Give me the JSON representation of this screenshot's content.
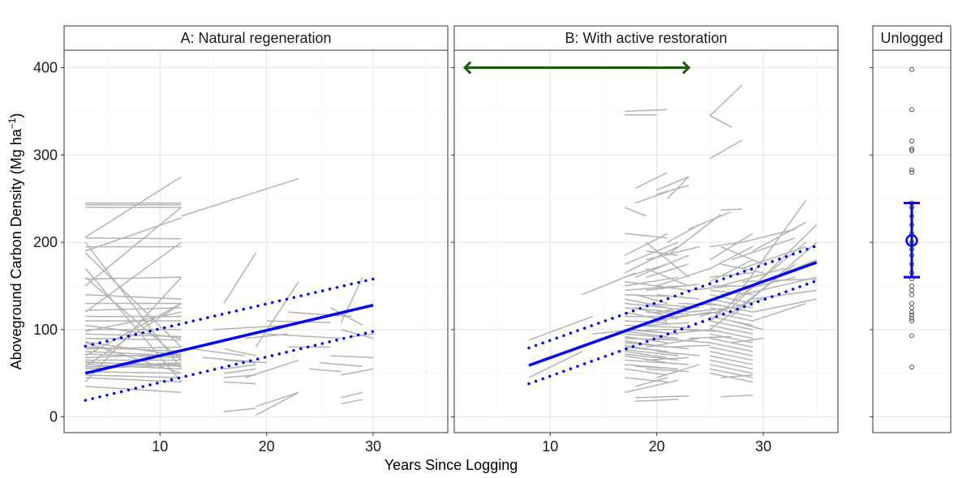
{
  "figure": {
    "xlabel": "Years Since Logging",
    "ylabel_main": "Aboveground Carbon Density (Mg ha",
    "ylabel_sup": "−1",
    "ylabel_close": ")"
  },
  "chart_data": [
    {
      "type": "line",
      "panel": "A",
      "title": "A: Natural regeneration",
      "xlim": [
        1,
        37
      ],
      "ylim": [
        -18,
        420
      ],
      "xticks": [
        10,
        20,
        30
      ],
      "yticks": [
        0,
        100,
        200,
        300,
        400
      ],
      "grid": true,
      "fit": {
        "name": "fit",
        "color": "#0000ff",
        "x": [
          3,
          30
        ],
        "y": [
          50,
          128
        ]
      },
      "ci_lower": {
        "color": "#0000ff",
        "x": [
          3,
          30
        ],
        "y": [
          19,
          98
        ]
      },
      "ci_upper": {
        "color": "#0000ff",
        "x": [
          3,
          30
        ],
        "y": [
          81,
          158
        ]
      },
      "plot_segments_color": "#b3b3b3",
      "plot_segments": [
        [
          3,
          245,
          12,
          245
        ],
        [
          3,
          243,
          12,
          243
        ],
        [
          3,
          240,
          12,
          240
        ],
        [
          3,
          206,
          12,
          275
        ],
        [
          3,
          205,
          12,
          204
        ],
        [
          3,
          195,
          12,
          195
        ],
        [
          3,
          190,
          12,
          228
        ],
        [
          3,
          150,
          12,
          240
        ],
        [
          3,
          158,
          12,
          160
        ],
        [
          3,
          140,
          12,
          135
        ],
        [
          3,
          130,
          12,
          130
        ],
        [
          3,
          122,
          12,
          125
        ],
        [
          3,
          115,
          12,
          115
        ],
        [
          3,
          110,
          12,
          110
        ],
        [
          3,
          100,
          12,
          100
        ],
        [
          3,
          95,
          12,
          92
        ],
        [
          3,
          90,
          12,
          88
        ],
        [
          3,
          85,
          12,
          50
        ],
        [
          3,
          80,
          12,
          75
        ],
        [
          3,
          75,
          12,
          70
        ],
        [
          3,
          70,
          12,
          130
        ],
        [
          3,
          68,
          12,
          72
        ],
        [
          3,
          65,
          12,
          65
        ],
        [
          3,
          62,
          12,
          60
        ],
        [
          3,
          60,
          12,
          55
        ],
        [
          3,
          58,
          12,
          130
        ],
        [
          3,
          55,
          12,
          60
        ],
        [
          3,
          52,
          12,
          50
        ],
        [
          3,
          48,
          12,
          45
        ],
        [
          3,
          45,
          12,
          40
        ],
        [
          3,
          40,
          12,
          160
        ],
        [
          3,
          35,
          12,
          28
        ],
        [
          3,
          200,
          12,
          55
        ],
        [
          3,
          188,
          12,
          80
        ],
        [
          3,
          170,
          12,
          40
        ],
        [
          3,
          160,
          12,
          65
        ],
        [
          3,
          120,
          12,
          200
        ],
        [
          3,
          105,
          12,
          90
        ],
        [
          3,
          98,
          12,
          120
        ],
        [
          3,
          86,
          12,
          70
        ],
        [
          3,
          78,
          12,
          80
        ],
        [
          3,
          72,
          12,
          68
        ],
        [
          3,
          63,
          12,
          58
        ],
        [
          3,
          57,
          12,
          62
        ],
        [
          12,
          230,
          23,
          273
        ],
        [
          16,
          130,
          19,
          188
        ],
        [
          16,
          78,
          19,
          70
        ],
        [
          16,
          65,
          19,
          62
        ],
        [
          16,
          55,
          19,
          60
        ],
        [
          16,
          50,
          19,
          55
        ],
        [
          16,
          45,
          19,
          48
        ],
        [
          16,
          6,
          19,
          10
        ],
        [
          16,
          40,
          19,
          38
        ],
        [
          19,
          80,
          23,
          155
        ],
        [
          18,
          45,
          23,
          65
        ],
        [
          19,
          2,
          23,
          28
        ],
        [
          19,
          12,
          23,
          28
        ],
        [
          20,
          95,
          27,
          90
        ],
        [
          22,
          120,
          28,
          115
        ],
        [
          25,
          62,
          29,
          58
        ],
        [
          24,
          55,
          27,
          52
        ],
        [
          26,
          125,
          29,
          105
        ],
        [
          27,
          22,
          29,
          28
        ],
        [
          27,
          15,
          29,
          20
        ],
        [
          26,
          70,
          30,
          68
        ],
        [
          27,
          100,
          30,
          90
        ],
        [
          27,
          48,
          30,
          55
        ],
        [
          22,
          80,
          26,
          80
        ],
        [
          28,
          92,
          30,
          95
        ],
        [
          13,
          78,
          18,
          70
        ],
        [
          14,
          68,
          20,
          62
        ],
        [
          18,
          90,
          22,
          95
        ],
        [
          27,
          108,
          29,
          160
        ],
        [
          20,
          110,
          26,
          108
        ],
        [
          15,
          100,
          22,
          105
        ]
      ]
    },
    {
      "type": "line",
      "panel": "B",
      "title": "B: With active restoration",
      "xlim": [
        1,
        37
      ],
      "ylim": [
        -18,
        420
      ],
      "xticks": [
        10,
        20,
        30
      ],
      "yticks": [
        0,
        100,
        200,
        300,
        400
      ],
      "grid": true,
      "fit": {
        "name": "fit",
        "color": "#0000ff",
        "x": [
          8,
          35
        ],
        "y": [
          59,
          177
        ]
      },
      "ci_lower": {
        "color": "#0000ff",
        "x": [
          8,
          35
        ],
        "y": [
          38,
          156
        ]
      },
      "ci_upper": {
        "color": "#0000ff",
        "x": [
          8,
          35
        ],
        "y": [
          79,
          196
        ]
      },
      "arrow": {
        "color": "#1a5c0a",
        "x": [
          2,
          23
        ],
        "y": 400
      },
      "plot_segments_color": "#b3b3b3",
      "plot_segments": [
        [
          8,
          88,
          14,
          115
        ],
        [
          8,
          45,
          13,
          75
        ],
        [
          13,
          140,
          18,
          165
        ],
        [
          14,
          95,
          18,
          100
        ],
        [
          17,
          350,
          21,
          352
        ],
        [
          17,
          346,
          20,
          346
        ],
        [
          17,
          240,
          19,
          230
        ],
        [
          18,
          262,
          21,
          280
        ],
        [
          18,
          245,
          21,
          258
        ],
        [
          17,
          210,
          21,
          205
        ],
        [
          17,
          185,
          21,
          210
        ],
        [
          17,
          175,
          22,
          200
        ],
        [
          17,
          165,
          22,
          195
        ],
        [
          17,
          160,
          21,
          175
        ],
        [
          17,
          155,
          23,
          145
        ],
        [
          17,
          150,
          22,
          160
        ],
        [
          17,
          145,
          22,
          150
        ],
        [
          17,
          140,
          21,
          138
        ],
        [
          17,
          135,
          23,
          120
        ],
        [
          17,
          130,
          21,
          125
        ],
        [
          17,
          125,
          22,
          120
        ],
        [
          17,
          120,
          21,
          110
        ],
        [
          17,
          115,
          22,
          115
        ],
        [
          17,
          110,
          21,
          108
        ],
        [
          17,
          105,
          23,
          102
        ],
        [
          17,
          100,
          22,
          95
        ],
        [
          17,
          98,
          21,
          92
        ],
        [
          17,
          95,
          22,
          90
        ],
        [
          17,
          92,
          21,
          85
        ],
        [
          17,
          90,
          22,
          88
        ],
        [
          17,
          87,
          21,
          80
        ],
        [
          17,
          85,
          23,
          78
        ],
        [
          17,
          82,
          22,
          72
        ],
        [
          17,
          80,
          21,
          75
        ],
        [
          17,
          77,
          22,
          70
        ],
        [
          17,
          75,
          21,
          68
        ],
        [
          17,
          72,
          22,
          65
        ],
        [
          17,
          70,
          21,
          62
        ],
        [
          17,
          65,
          23,
          60
        ],
        [
          17,
          60,
          22,
          55
        ],
        [
          17,
          55,
          21,
          48
        ],
        [
          17,
          45,
          21,
          40
        ],
        [
          17,
          28,
          22,
          42
        ],
        [
          18,
          22,
          23,
          24
        ],
        [
          18,
          18,
          22,
          20
        ],
        [
          19,
          160,
          23,
          175
        ],
        [
          19,
          200,
          23,
          160
        ],
        [
          19,
          190,
          22,
          185
        ],
        [
          19,
          180,
          24,
          195
        ],
        [
          20,
          150,
          25,
          170
        ],
        [
          20,
          140,
          24,
          135
        ],
        [
          19,
          170,
          23,
          150
        ],
        [
          20,
          255,
          23,
          265
        ],
        [
          20,
          260,
          23,
          275
        ],
        [
          21,
          250,
          23,
          275
        ],
        [
          18,
          160,
          23,
          185
        ],
        [
          20,
          120,
          25,
          130
        ],
        [
          20,
          110,
          25,
          120
        ],
        [
          19,
          130,
          24,
          125
        ],
        [
          19,
          100,
          24,
          100
        ],
        [
          19,
          80,
          24,
          90
        ],
        [
          21,
          200,
          24,
          220
        ],
        [
          21,
          185,
          26,
          232
        ],
        [
          23,
          215,
          27,
          235
        ],
        [
          25,
          345,
          27,
          332
        ],
        [
          25,
          345,
          28,
          380
        ],
        [
          25,
          296,
          28,
          317
        ],
        [
          25,
          195,
          28,
          200
        ],
        [
          25,
          180,
          29,
          210
        ],
        [
          25,
          170,
          29,
          195
        ],
        [
          25,
          160,
          29,
          165
        ],
        [
          25,
          155,
          29,
          180
        ],
        [
          25,
          150,
          29,
          150
        ],
        [
          25,
          145,
          29,
          140
        ],
        [
          25,
          140,
          29,
          130
        ],
        [
          25,
          135,
          29,
          125
        ],
        [
          25,
          130,
          29,
          120
        ],
        [
          25,
          125,
          29,
          115
        ],
        [
          25,
          120,
          29,
          110
        ],
        [
          25,
          115,
          29,
          105
        ],
        [
          25,
          110,
          29,
          100
        ],
        [
          25,
          105,
          29,
          95
        ],
        [
          25,
          100,
          29,
          90
        ],
        [
          25,
          95,
          29,
          85
        ],
        [
          25,
          90,
          29,
          80
        ],
        [
          25,
          85,
          29,
          75
        ],
        [
          25,
          80,
          29,
          70
        ],
        [
          25,
          75,
          29,
          65
        ],
        [
          25,
          70,
          29,
          60
        ],
        [
          25,
          65,
          29,
          55
        ],
        [
          25,
          60,
          29,
          50
        ],
        [
          25,
          55,
          29,
          45
        ],
        [
          25,
          50,
          29,
          40
        ],
        [
          26,
          237,
          28,
          238
        ],
        [
          26,
          45,
          29,
          48
        ],
        [
          26,
          23,
          29,
          25
        ],
        [
          26,
          195,
          30,
          175
        ],
        [
          26,
          175,
          30,
          165
        ],
        [
          27,
          110,
          30,
          100
        ],
        [
          27,
          85,
          30,
          90
        ],
        [
          25,
          110,
          34,
          200
        ],
        [
          25,
          100,
          33,
          175
        ],
        [
          27,
          130,
          34,
          248
        ],
        [
          27,
          125,
          35,
          220
        ],
        [
          27,
          115,
          35,
          200
        ],
        [
          28,
          155,
          35,
          158
        ],
        [
          28,
          140,
          35,
          160
        ],
        [
          29,
          150,
          35,
          180
        ],
        [
          29,
          135,
          35,
          145
        ],
        [
          29,
          120,
          35,
          135
        ],
        [
          29,
          110,
          34,
          130
        ],
        [
          26,
          150,
          32,
          170
        ],
        [
          26,
          140,
          33,
          160
        ],
        [
          27,
          180,
          33,
          205
        ],
        [
          28,
          170,
          34,
          195
        ],
        [
          28,
          200,
          33,
          215
        ],
        [
          29,
          190,
          34,
          223
        ],
        [
          24,
          115,
          30,
          135
        ],
        [
          19,
          65,
          23,
          68
        ],
        [
          19,
          55,
          23,
          52
        ],
        [
          20,
          90,
          25,
          85
        ],
        [
          20,
          75,
          24,
          70
        ],
        [
          18,
          140,
          21,
          130
        ],
        [
          18,
          125,
          22,
          112
        ],
        [
          18,
          100,
          22,
          95
        ],
        [
          18,
          85,
          21,
          80
        ],
        [
          19,
          145,
          24,
          152
        ],
        [
          19,
          120,
          23,
          118
        ],
        [
          19,
          105,
          23,
          108
        ],
        [
          21,
          95,
          25,
          100
        ],
        [
          21,
          80,
          25,
          82
        ],
        [
          20,
          45,
          24,
          60
        ],
        [
          18,
          58,
          22,
          55
        ],
        [
          18,
          35,
          21,
          45
        ],
        [
          22,
          130,
          26,
          128
        ],
        [
          22,
          115,
          26,
          120
        ],
        [
          22,
          100,
          26,
          98
        ],
        [
          23,
          145,
          27,
          150
        ],
        [
          23,
          120,
          27,
          125
        ],
        [
          23,
          90,
          27,
          92
        ]
      ]
    },
    {
      "type": "scatter",
      "panel": "C",
      "title": "Unlogged",
      "ylim": [
        -18,
        420
      ],
      "x_position": 0.5,
      "points_y": [
        398,
        352,
        316,
        307,
        305,
        283,
        280,
        245,
        240,
        230,
        220,
        210,
        200,
        192,
        185,
        175,
        165,
        158,
        150,
        145,
        140,
        130,
        125,
        120,
        117,
        113,
        110,
        93,
        57
      ],
      "mean": 202,
      "error_bar": [
        160,
        245
      ],
      "summary_color": "#0000ff",
      "point_stroke": "#333333"
    }
  ]
}
